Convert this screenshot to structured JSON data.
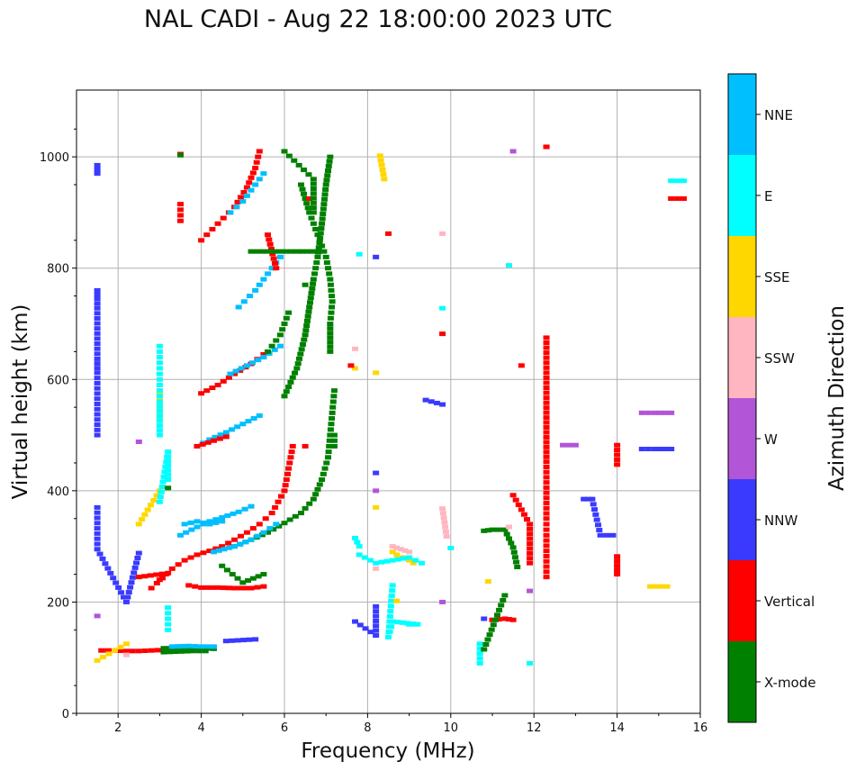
{
  "chart_data": {
    "type": "scatter",
    "title": "NAL CADI - Aug 22 18:00:00 2023 UTC",
    "xlabel": "Frequency (MHz)",
    "ylabel": "Virtual height (km)",
    "xlim": [
      1,
      16
    ],
    "ylim": [
      0,
      1120
    ],
    "xticks": [
      2,
      4,
      6,
      8,
      10,
      12,
      14,
      16
    ],
    "yticks": [
      0,
      200,
      400,
      600,
      800,
      1000
    ],
    "grid": true,
    "colorbar": {
      "label": "Azimuth Direction",
      "categories": [
        "X-mode",
        "Vertical",
        "NNW",
        "W",
        "SSW",
        "SSE",
        "E",
        "NNE"
      ],
      "colors": [
        "#008000",
        "#ff0000",
        "#3a3aff",
        "#b255d6",
        "#ffb6c1",
        "#ffd700",
        "#00ffff",
        "#00bfff"
      ]
    },
    "traces": [
      {
        "direction": "Vertical",
        "points": [
          [
            1.6,
            113
          ],
          [
            1.9,
            113
          ],
          [
            2.2,
            112
          ],
          [
            2.5,
            112
          ],
          [
            2.8,
            113
          ],
          [
            3.1,
            114
          ],
          [
            3.3,
            116
          ]
        ]
      },
      {
        "direction": "X-mode",
        "points": [
          [
            3.1,
            117
          ],
          [
            3.5,
            117
          ],
          [
            3.8,
            116
          ],
          [
            4.1,
            117
          ],
          [
            4.3,
            116
          ]
        ]
      },
      {
        "direction": "NNE",
        "points": [
          [
            3.3,
            120
          ],
          [
            3.7,
            121
          ],
          [
            4.0,
            120
          ],
          [
            4.3,
            120
          ]
        ]
      },
      {
        "direction": "Vertical",
        "points": [
          [
            3.0,
            240
          ],
          [
            3.3,
            260
          ],
          [
            3.6,
            275
          ],
          [
            3.9,
            285
          ],
          [
            4.2,
            292
          ],
          [
            4.5,
            300
          ],
          [
            4.8,
            312
          ],
          [
            5.1,
            325
          ],
          [
            5.4,
            340
          ],
          [
            5.7,
            360
          ],
          [
            6.0,
            400
          ],
          [
            6.1,
            440
          ],
          [
            6.2,
            480
          ]
        ]
      },
      {
        "direction": "X-mode",
        "points": [
          [
            4.8,
            300
          ],
          [
            5.2,
            312
          ],
          [
            5.6,
            325
          ],
          [
            6.0,
            342
          ],
          [
            6.4,
            360
          ],
          [
            6.7,
            385
          ],
          [
            6.9,
            420
          ],
          [
            7.05,
            460
          ],
          [
            7.1,
            500
          ],
          [
            7.15,
            540
          ],
          [
            7.2,
            580
          ]
        ]
      },
      {
        "direction": "NNE",
        "points": [
          [
            3.5,
            320
          ],
          [
            3.9,
            335
          ],
          [
            4.2,
            345
          ],
          [
            4.5,
            352
          ],
          [
            4.9,
            362
          ],
          [
            5.2,
            372
          ]
        ]
      },
      {
        "direction": "NNE",
        "points": [
          [
            4.3,
            290
          ],
          [
            4.8,
            300
          ],
          [
            5.2,
            312
          ],
          [
            5.5,
            325
          ],
          [
            5.8,
            340
          ]
        ]
      },
      {
        "direction": "NNE",
        "points": [
          [
            3.9,
            480
          ],
          [
            4.2,
            492
          ],
          [
            4.6,
            505
          ],
          [
            5.0,
            520
          ],
          [
            5.4,
            535
          ]
        ]
      },
      {
        "direction": "Vertical",
        "points": [
          [
            3.9,
            480
          ],
          [
            4.3,
            490
          ],
          [
            4.6,
            497
          ]
        ]
      },
      {
        "direction": "Vertical",
        "points": [
          [
            4.0,
            575
          ],
          [
            4.4,
            590
          ],
          [
            4.8,
            610
          ],
          [
            5.2,
            628
          ],
          [
            5.5,
            645
          ]
        ]
      },
      {
        "direction": "NNE",
        "points": [
          [
            4.7,
            610
          ],
          [
            5.1,
            625
          ],
          [
            5.5,
            640
          ],
          [
            5.9,
            660
          ]
        ]
      },
      {
        "direction": "X-mode",
        "points": [
          [
            6.0,
            570
          ],
          [
            6.3,
            620
          ],
          [
            6.5,
            680
          ],
          [
            6.6,
            730
          ],
          [
            6.7,
            780
          ],
          [
            6.8,
            820
          ],
          [
            6.9,
            880
          ],
          [
            7.0,
            950
          ],
          [
            7.1,
            1000
          ]
        ]
      },
      {
        "direction": "X-mode",
        "points": [
          [
            5.6,
            650
          ],
          [
            5.9,
            680
          ],
          [
            6.1,
            720
          ]
        ]
      },
      {
        "direction": "NNE",
        "points": [
          [
            4.9,
            730
          ],
          [
            5.3,
            760
          ],
          [
            5.6,
            790
          ],
          [
            5.9,
            820
          ]
        ]
      },
      {
        "direction": "Vertical",
        "points": [
          [
            4.0,
            850
          ],
          [
            4.4,
            880
          ],
          [
            4.8,
            910
          ],
          [
            5.1,
            945
          ],
          [
            5.3,
            980
          ],
          [
            5.4,
            1010
          ]
        ]
      },
      {
        "direction": "NNE",
        "points": [
          [
            4.7,
            900
          ],
          [
            5.0,
            920
          ],
          [
            5.3,
            950
          ],
          [
            5.5,
            970
          ]
        ]
      },
      {
        "direction": "X-mode",
        "points": [
          [
            6.4,
            950
          ],
          [
            6.6,
            900
          ],
          [
            6.8,
            860
          ],
          [
            7.0,
            820
          ],
          [
            7.1,
            780
          ],
          [
            7.15,
            740
          ],
          [
            7.1,
            700
          ],
          [
            7.1,
            650
          ]
        ]
      },
      {
        "direction": "Vertical",
        "points": [
          [
            3.7,
            230
          ],
          [
            4.0,
            226
          ],
          [
            4.4,
            226
          ],
          [
            4.8,
            225
          ],
          [
            5.2,
            225
          ],
          [
            5.5,
            228
          ]
        ]
      },
      {
        "direction": "NNE",
        "points": [
          [
            3.6,
            340
          ],
          [
            3.9,
            345
          ],
          [
            4.2,
            340
          ],
          [
            4.5,
            345
          ]
        ]
      },
      {
        "direction": "SSE",
        "points": [
          [
            8.6,
            290
          ],
          [
            8.7,
            285
          ],
          [
            9.0,
            275
          ],
          [
            9.1,
            270
          ]
        ]
      },
      {
        "direction": "E",
        "points": [
          [
            7.8,
            285
          ],
          [
            8.2,
            270
          ],
          [
            8.6,
            275
          ],
          [
            9.0,
            280
          ],
          [
            9.3,
            270
          ]
        ]
      },
      {
        "direction": "SSW",
        "points": [
          [
            8.6,
            300
          ],
          [
            8.8,
            295
          ],
          [
            9.0,
            290
          ]
        ]
      },
      {
        "direction": "Vertical",
        "points": [
          [
            11.0,
            168
          ],
          [
            11.3,
            170
          ],
          [
            11.5,
            168
          ]
        ]
      },
      {
        "direction": "X-mode",
        "points": [
          [
            10.8,
            328
          ],
          [
            11.0,
            330
          ],
          [
            11.3,
            330
          ],
          [
            11.5,
            298
          ],
          [
            11.6,
            263
          ]
        ]
      },
      {
        "direction": "NNW",
        "points": [
          [
            14.6,
            475
          ],
          [
            14.9,
            475
          ],
          [
            15.3,
            475
          ]
        ]
      },
      {
        "direction": "W",
        "points": [
          [
            14.6,
            540
          ],
          [
            14.9,
            540
          ],
          [
            15.3,
            540
          ]
        ]
      },
      {
        "direction": "E",
        "points": [
          [
            15.3,
            957
          ],
          [
            15.6,
            957
          ]
        ]
      },
      {
        "direction": "Vertical",
        "points": [
          [
            15.3,
            925
          ],
          [
            15.6,
            925
          ]
        ]
      },
      {
        "direction": "NNW",
        "points": [
          [
            13.2,
            385
          ],
          [
            13.4,
            385
          ],
          [
            13.6,
            320
          ],
          [
            13.9,
            320
          ]
        ]
      },
      {
        "direction": "W",
        "points": [
          [
            12.7,
            482
          ],
          [
            13.0,
            482
          ]
        ]
      },
      {
        "direction": "SSE",
        "points": [
          [
            14.8,
            228
          ],
          [
            15.2,
            228
          ]
        ]
      },
      {
        "direction": "Vertical",
        "points": [
          [
            12.3,
            675
          ],
          [
            12.3,
            585
          ],
          [
            12.3,
            558
          ],
          [
            12.3,
            505
          ],
          [
            12.3,
            452
          ],
          [
            12.3,
            350
          ],
          [
            12.3,
            320
          ],
          [
            12.3,
            245
          ],
          [
            12.3,
            1018
          ]
        ]
      },
      {
        "direction": "Vertical",
        "points": [
          [
            14.0,
            482
          ],
          [
            14.0,
            447
          ],
          [
            14.0,
            282
          ],
          [
            14.0,
            250
          ]
        ]
      },
      {
        "direction": "Vertical",
        "points": [
          [
            11.5,
            392
          ],
          [
            11.9,
            340
          ],
          [
            11.9,
            270
          ]
        ]
      },
      {
        "direction": "E",
        "points": [
          [
            10.7,
            125
          ],
          [
            10.7,
            90
          ],
          [
            11.9,
            90
          ],
          [
            9.0,
            160
          ],
          [
            9.2,
            160
          ],
          [
            8.6,
            165
          ],
          [
            8.5,
            137
          ],
          [
            8.6,
            230
          ],
          [
            11.4,
            805
          ],
          [
            7.8,
            825
          ],
          [
            9.8,
            728
          ],
          [
            10.0,
            297
          ]
        ]
      },
      {
        "direction": "NNW",
        "points": [
          [
            8.2,
            820
          ],
          [
            8.2,
            432
          ],
          [
            8.2,
            192
          ],
          [
            8.2,
            140
          ],
          [
            7.7,
            165
          ],
          [
            9.4,
            563
          ],
          [
            9.8,
            555
          ],
          [
            10.8,
            170
          ],
          [
            1.5,
            985
          ],
          [
            1.5,
            970
          ],
          [
            1.5,
            760
          ],
          [
            1.5,
            745
          ],
          [
            1.5,
            728
          ],
          [
            1.5,
            637
          ],
          [
            1.5,
            612
          ],
          [
            1.5,
            500
          ],
          [
            1.5,
            370
          ],
          [
            1.5,
            295
          ],
          [
            2.2,
            200
          ],
          [
            2.5,
            288
          ],
          [
            4.6,
            130
          ],
          [
            5.3,
            133
          ]
        ]
      },
      {
        "direction": "W",
        "points": [
          [
            8.2,
            400
          ],
          [
            9.8,
            200
          ],
          [
            11.9,
            220
          ],
          [
            2.5,
            488
          ],
          [
            1.5,
            175
          ],
          [
            11.5,
            1010
          ]
        ]
      },
      {
        "direction": "SSW",
        "points": [
          [
            7.7,
            655
          ],
          [
            8.2,
            260
          ],
          [
            9.8,
            862
          ],
          [
            9.8,
            368
          ],
          [
            9.9,
            318
          ],
          [
            11.4,
            335
          ],
          [
            3.0,
            620
          ],
          [
            2.2,
            105
          ]
        ]
      },
      {
        "direction": "SSE",
        "points": [
          [
            8.3,
            1002
          ],
          [
            8.4,
            960
          ],
          [
            8.2,
            612
          ],
          [
            8.2,
            370
          ],
          [
            8.7,
            202
          ],
          [
            10.9,
            237
          ],
          [
            7.7,
            620
          ],
          [
            3.0,
            530
          ],
          [
            3.0,
            580
          ],
          [
            3.0,
            400
          ],
          [
            2.5,
            340
          ],
          [
            1.5,
            95
          ],
          [
            2.2,
            125
          ]
        ]
      },
      {
        "direction": "E",
        "points": [
          [
            3.0,
            660
          ],
          [
            3.0,
            640
          ],
          [
            3.0,
            600
          ],
          [
            3.0,
            560
          ],
          [
            3.0,
            500
          ],
          [
            3.0,
            380
          ],
          [
            3.2,
            470
          ],
          [
            3.2,
            420
          ],
          [
            3.2,
            150
          ],
          [
            3.2,
            190
          ],
          [
            7.7,
            315
          ],
          [
            7.8,
            300
          ]
        ]
      },
      {
        "direction": "Vertical",
        "points": [
          [
            3.5,
            915
          ],
          [
            3.5,
            885
          ],
          [
            3.5,
            1005
          ],
          [
            8.5,
            862
          ],
          [
            7.6,
            625
          ],
          [
            9.8,
            682
          ],
          [
            11.7,
            625
          ],
          [
            12.3,
            1018
          ],
          [
            5.6,
            860
          ],
          [
            5.8,
            800
          ],
          [
            6.6,
            925
          ],
          [
            2.5,
            245
          ],
          [
            3.2,
            252
          ],
          [
            2.8,
            225
          ],
          [
            6.5,
            480
          ]
        ]
      },
      {
        "direction": "X-mode",
        "points": [
          [
            3.5,
            1003
          ],
          [
            6.0,
            1010
          ],
          [
            6.7,
            960
          ],
          [
            6.7,
            900
          ],
          [
            6.5,
            770
          ],
          [
            7.2,
            500
          ],
          [
            7.2,
            480
          ],
          [
            4.5,
            265
          ],
          [
            5.0,
            235
          ],
          [
            5.5,
            250
          ],
          [
            10.8,
            115
          ],
          [
            11.3,
            212
          ],
          [
            3.1,
            110
          ],
          [
            3.8,
            112
          ],
          [
            4.1,
            112
          ],
          [
            3.2,
            405
          ],
          [
            5.2,
            830
          ],
          [
            6.3,
            830
          ],
          [
            6.8,
            830
          ]
        ]
      }
    ]
  }
}
